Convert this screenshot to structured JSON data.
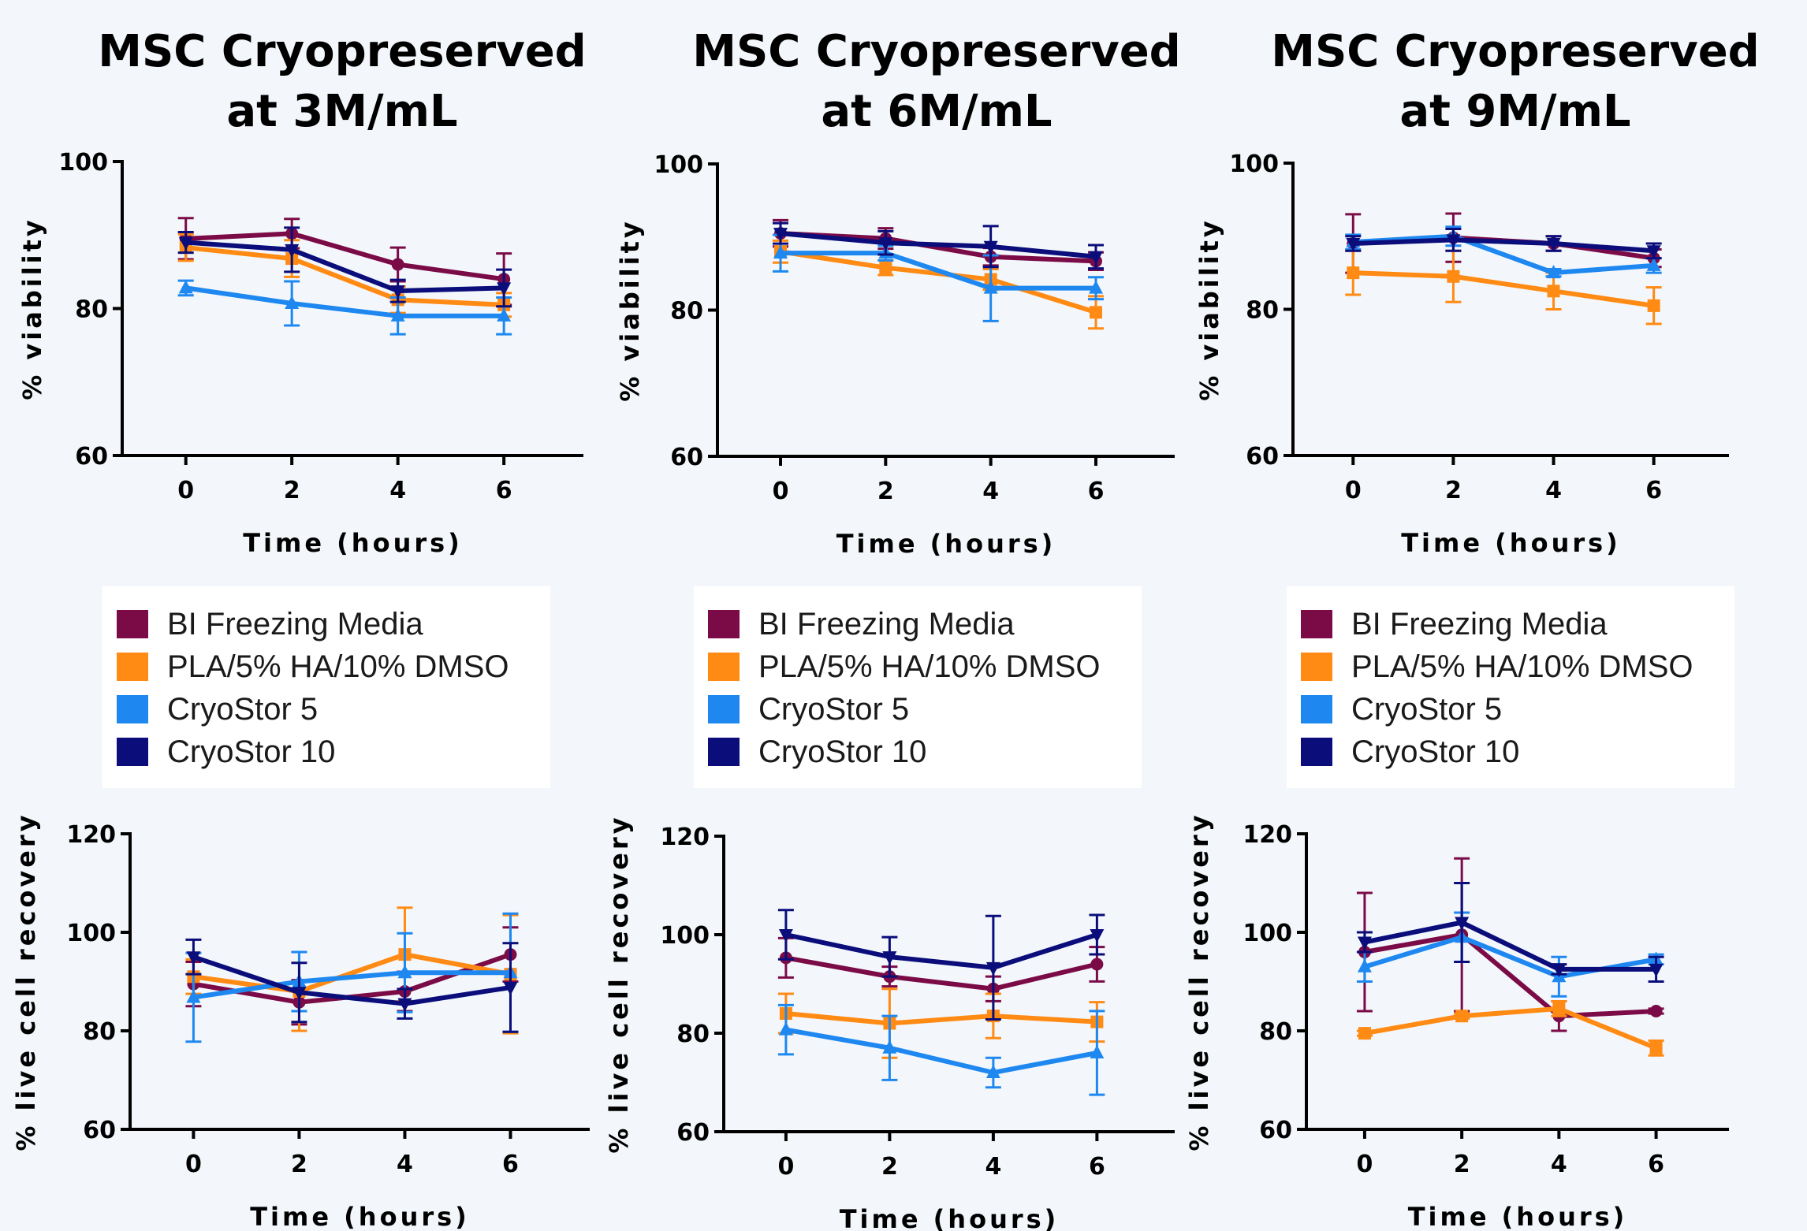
{
  "colors": {
    "BI Freezing Media": "#7b0b47",
    "PLA/5% HA/10% DMSO": "#ff8a14",
    "CryoStor 5": "#1e88f0",
    "CryoStor 10": "#0a0d7a"
  },
  "columns": [
    {
      "title_line1": "MSC Cryopreserved",
      "title_line2": "at 3M/mL"
    },
    {
      "title_line1": "MSC Cryopreserved",
      "title_line2": "at 6M/mL"
    },
    {
      "title_line1": "MSC Cryopreserved",
      "title_line2": "at 9M/mL"
    }
  ],
  "legend": {
    "items": [
      {
        "label": "BI Freezing Media"
      },
      {
        "label": "PLA/5% HA/10% DMSO"
      },
      {
        "label": "CryoStor 5"
      },
      {
        "label": "CryoStor 10"
      }
    ]
  },
  "chart_data": [
    {
      "type": "line",
      "title": "MSC Cryopreserved at 3M/mL",
      "xlabel": "Time (hours)",
      "ylabel": "% viability",
      "x": [
        0,
        2,
        4,
        6
      ],
      "xlim": [
        -1.2,
        7.5
      ],
      "ylim": [
        60,
        100
      ],
      "yticks": [
        60,
        80,
        100
      ],
      "series": [
        {
          "name": "BI Freezing Media",
          "marker": "circle",
          "values": [
            89.5,
            90.2,
            86.0,
            84.0
          ],
          "errors": [
            2.8,
            2.0,
            2.3,
            3.5
          ]
        },
        {
          "name": "PLA/5% HA/10% DMSO",
          "marker": "square",
          "values": [
            88.3,
            86.8,
            81.2,
            80.5
          ],
          "errors": [
            1.8,
            2.5,
            1.8,
            1.6
          ]
        },
        {
          "name": "CryoStor 5",
          "marker": "triangle-up",
          "values": [
            82.8,
            80.7,
            79.0,
            79.0
          ],
          "errors": [
            1.0,
            3.0,
            2.5,
            2.5
          ]
        },
        {
          "name": "CryoStor 10",
          "marker": "triangle-down",
          "values": [
            89.0,
            88.0,
            82.4,
            82.8
          ],
          "errors": [
            1.4,
            3.0,
            1.5,
            2.5
          ]
        }
      ]
    },
    {
      "type": "line",
      "title": "MSC Cryopreserved at 6M/mL",
      "xlabel": "Time (hours)",
      "ylabel": "% viability",
      "x": [
        0,
        2,
        4,
        6
      ],
      "xlim": [
        -1.2,
        7.5
      ],
      "ylim": [
        60,
        100
      ],
      "yticks": [
        60,
        80,
        100
      ],
      "series": [
        {
          "name": "BI Freezing Media",
          "marker": "circle",
          "values": [
            90.5,
            89.8,
            87.3,
            86.7
          ],
          "errors": [
            1.8,
            1.4,
            1.2,
            1.2
          ]
        },
        {
          "name": "PLA/5% HA/10% DMSO",
          "marker": "square",
          "values": [
            88.0,
            85.8,
            84.2,
            79.7
          ],
          "errors": [
            1.5,
            1.0,
            1.4,
            2.2
          ]
        },
        {
          "name": "CryoStor 5",
          "marker": "triangle-up",
          "values": [
            87.8,
            87.8,
            83.0,
            83.0
          ],
          "errors": [
            2.5,
            1.0,
            4.5,
            1.5
          ]
        },
        {
          "name": "CryoStor 10",
          "marker": "triangle-down",
          "values": [
            90.5,
            89.2,
            88.7,
            87.3
          ],
          "errors": [
            1.4,
            1.6,
            2.8,
            1.6
          ]
        }
      ]
    },
    {
      "type": "line",
      "title": "MSC Cryopreserved at 9M/mL",
      "xlabel": "Time (hours)",
      "ylabel": "% viability",
      "x": [
        0,
        2,
        4,
        6
      ],
      "xlim": [
        -1.2,
        7.5
      ],
      "ylim": [
        60,
        100
      ],
      "yticks": [
        60,
        80,
        100
      ],
      "series": [
        {
          "name": "BI Freezing Media",
          "marker": "circle",
          "values": [
            89.0,
            89.8,
            89.0,
            87.0
          ],
          "errors": [
            4.0,
            3.3,
            1.0,
            1.2
          ]
        },
        {
          "name": "PLA/5% HA/10% DMSO",
          "marker": "square",
          "values": [
            85.0,
            84.5,
            82.5,
            80.5
          ],
          "errors": [
            3.0,
            3.5,
            2.5,
            2.5
          ]
        },
        {
          "name": "CryoStor 5",
          "marker": "triangle-up",
          "values": [
            89.2,
            90.0,
            85.0,
            86.0
          ],
          "errors": [
            1.0,
            1.3,
            0.5,
            1.0
          ]
        },
        {
          "name": "CryoStor 10",
          "marker": "triangle-down",
          "values": [
            89.0,
            89.5,
            89.0,
            88.0
          ],
          "errors": [
            1.0,
            1.5,
            1.0,
            1.0
          ]
        }
      ]
    },
    {
      "type": "line",
      "xlabel": "Time (hours)",
      "ylabel": "% live cell recovery",
      "x": [
        0,
        2,
        4,
        6
      ],
      "xlim": [
        -1.2,
        7.5
      ],
      "ylim": [
        60,
        120
      ],
      "yticks": [
        60,
        80,
        100,
        120
      ],
      "series": [
        {
          "name": "BI Freezing Media",
          "marker": "circle",
          "values": [
            89.5,
            85.8,
            88.0,
            95.5
          ],
          "errors": [
            4.5,
            4.5,
            4.0,
            5.5
          ]
        },
        {
          "name": "PLA/5% HA/10% DMSO",
          "marker": "square",
          "values": [
            91.0,
            88.0,
            95.5,
            91.5
          ],
          "errors": [
            3.5,
            8.0,
            9.5,
            12.0
          ]
        },
        {
          "name": "CryoStor 5",
          "marker": "triangle-up",
          "values": [
            86.8,
            90.0,
            91.8,
            91.8
          ],
          "errors": [
            9.0,
            6.0,
            8.0,
            12.0
          ]
        },
        {
          "name": "CryoStor 10",
          "marker": "triangle-down",
          "values": [
            95.0,
            87.8,
            85.5,
            88.8
          ],
          "errors": [
            3.5,
            6.0,
            3.0,
            9.0
          ]
        }
      ]
    },
    {
      "type": "line",
      "xlabel": "Time (hours)",
      "ylabel": "% live cell recovery",
      "x": [
        0,
        2,
        4,
        6
      ],
      "xlim": [
        -1.2,
        7.5
      ],
      "ylim": [
        60,
        120
      ],
      "yticks": [
        60,
        80,
        100,
        120
      ],
      "series": [
        {
          "name": "BI Freezing Media",
          "marker": "circle",
          "values": [
            95.3,
            91.5,
            89.0,
            94.0
          ],
          "errors": [
            4.0,
            2.0,
            2.5,
            3.5
          ]
        },
        {
          "name": "PLA/5% HA/10% DMSO",
          "marker": "square",
          "values": [
            84.0,
            82.0,
            83.5,
            82.3
          ],
          "errors": [
            4.0,
            7.0,
            4.5,
            4.0
          ]
        },
        {
          "name": "CryoStor 5",
          "marker": "triangle-up",
          "values": [
            80.7,
            77.0,
            72.0,
            76.0
          ],
          "errors": [
            5.0,
            6.5,
            3.0,
            8.5
          ]
        },
        {
          "name": "CryoStor 10",
          "marker": "triangle-down",
          "values": [
            100.0,
            95.5,
            93.3,
            100.0
          ],
          "errors": [
            5.0,
            4.0,
            10.5,
            4.0
          ]
        }
      ]
    },
    {
      "type": "line",
      "xlabel": "Time (hours)",
      "ylabel": "% live cell recovery",
      "x": [
        0,
        2,
        4,
        6
      ],
      "xlim": [
        -1.2,
        7.5
      ],
      "ylim": [
        60,
        120
      ],
      "yticks": [
        60,
        80,
        100,
        120
      ],
      "series": [
        {
          "name": "BI Freezing Media",
          "marker": "circle",
          "values": [
            96.0,
            99.5,
            83.0,
            84.0
          ],
          "errors": [
            12.0,
            15.5,
            3.0,
            0.5
          ]
        },
        {
          "name": "PLA/5% HA/10% DMSO",
          "marker": "square",
          "values": [
            79.5,
            83.0,
            84.5,
            76.5
          ],
          "errors": [
            0.5,
            0.5,
            1.5,
            1.5
          ]
        },
        {
          "name": "CryoStor 5",
          "marker": "triangle-up",
          "values": [
            93.0,
            99.0,
            91.0,
            94.5
          ],
          "errors": [
            3.0,
            5.0,
            4.0,
            1.0
          ]
        },
        {
          "name": "CryoStor 10",
          "marker": "triangle-down",
          "values": [
            98.0,
            102.0,
            92.5,
            92.5
          ],
          "errors": [
            2.0,
            8.0,
            1.0,
            2.5
          ]
        }
      ]
    }
  ]
}
